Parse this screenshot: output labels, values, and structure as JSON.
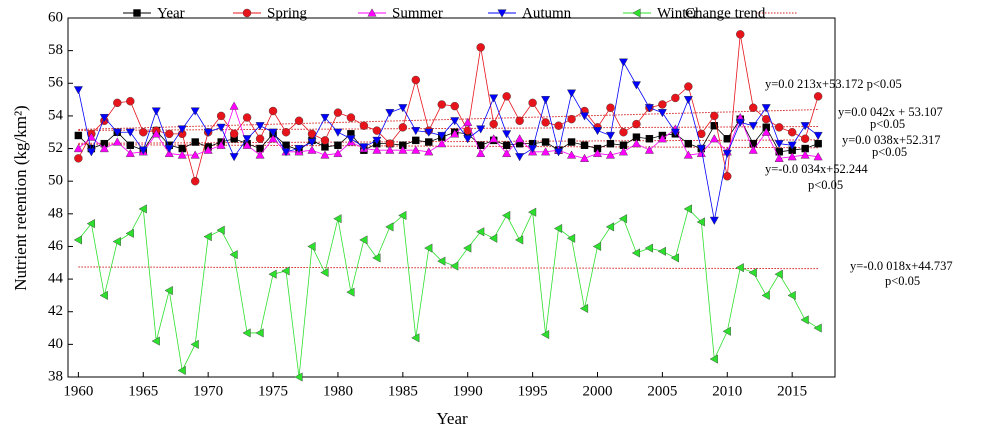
{
  "chart_data": {
    "type": "line",
    "x_label": "Year",
    "y_label": "Nutrient retention (kg/km²)",
    "x": [
      1960,
      1961,
      1962,
      1963,
      1964,
      1965,
      1966,
      1967,
      1968,
      1969,
      1970,
      1971,
      1972,
      1973,
      1974,
      1975,
      1976,
      1977,
      1978,
      1979,
      1980,
      1981,
      1982,
      1983,
      1984,
      1985,
      1986,
      1987,
      1988,
      1989,
      1990,
      1991,
      1992,
      1993,
      1994,
      1995,
      1996,
      1997,
      1998,
      1999,
      2000,
      2001,
      2002,
      2003,
      2004,
      2005,
      2006,
      2007,
      2008,
      2009,
      2010,
      2011,
      2012,
      2013,
      2014,
      2015,
      2016,
      2017
    ],
    "xlim": [
      1959.2,
      2018.3
    ],
    "xticks": [
      1960,
      1965,
      1970,
      1975,
      1980,
      1985,
      1990,
      1995,
      2000,
      2005,
      2010,
      2015
    ],
    "ylim": [
      38,
      60
    ],
    "yticks": [
      38,
      40,
      42,
      44,
      46,
      48,
      50,
      52,
      54,
      56,
      58,
      60
    ],
    "series": [
      {
        "name": "Year",
        "color": "#000000",
        "marker": "square",
        "values": [
          52.8,
          52.0,
          52.3,
          53.0,
          52.2,
          51.9,
          53.1,
          52.2,
          52.0,
          52.4,
          52.1,
          52.4,
          52.6,
          52.3,
          52.0,
          52.9,
          52.2,
          51.9,
          52.5,
          52.1,
          52.2,
          52.9,
          51.9,
          52.3,
          52.3,
          52.2,
          52.5,
          52.4,
          52.7,
          53.0,
          52.9,
          52.2,
          52.5,
          52.2,
          52.3,
          52.3,
          52.4,
          51.9,
          52.4,
          52.2,
          52.0,
          52.3,
          52.2,
          52.7,
          52.6,
          52.8,
          52.9,
          52.3,
          52.0,
          53.4,
          52.6,
          53.8,
          52.3,
          53.3,
          51.8,
          51.9,
          52.0,
          52.3
        ]
      },
      {
        "name": "Spring",
        "color": "#e8141c",
        "marker": "circle",
        "values": [
          51.4,
          52.9,
          53.7,
          54.8,
          54.9,
          53.0,
          53.1,
          52.9,
          52.9,
          50.0,
          53.0,
          54.0,
          52.9,
          53.9,
          52.6,
          54.3,
          53.0,
          53.7,
          52.9,
          52.5,
          54.2,
          53.9,
          53.4,
          53.1,
          52.3,
          53.3,
          56.2,
          53.1,
          54.7,
          54.6,
          53.1,
          58.2,
          53.5,
          55.2,
          53.7,
          54.8,
          53.6,
          53.4,
          53.8,
          54.3,
          53.3,
          54.5,
          53.0,
          53.5,
          54.5,
          54.7,
          55.1,
          55.8,
          52.9,
          54.0,
          50.3,
          59.0,
          54.5,
          53.8,
          53.3,
          53.0,
          52.6,
          55.2
        ]
      },
      {
        "name": "Summer",
        "color": "#ff00ff",
        "marker": "triangle-up",
        "values": [
          52.0,
          52.7,
          52.0,
          52.4,
          51.7,
          51.8,
          52.9,
          51.7,
          51.6,
          51.6,
          51.9,
          52.2,
          54.6,
          52.2,
          51.6,
          52.6,
          51.8,
          51.8,
          51.9,
          51.6,
          51.7,
          52.4,
          52.0,
          51.9,
          51.9,
          51.9,
          51.9,
          51.8,
          52.3,
          52.9,
          53.6,
          51.7,
          52.6,
          51.7,
          52.6,
          51.8,
          51.8,
          51.9,
          51.6,
          51.4,
          51.7,
          51.6,
          51.8,
          52.3,
          51.9,
          52.6,
          53.2,
          51.6,
          51.7,
          52.6,
          51.8,
          53.9,
          51.9,
          53.0,
          51.4,
          51.5,
          51.6,
          51.5
        ]
      },
      {
        "name": "Autumn",
        "color": "#0000ff",
        "marker": "triangle-down",
        "values": [
          55.6,
          51.8,
          53.9,
          53.0,
          53.0,
          51.9,
          54.3,
          52.0,
          53.2,
          54.3,
          53.0,
          53.3,
          51.5,
          52.6,
          53.4,
          53.0,
          51.8,
          52.0,
          52.4,
          53.9,
          53.0,
          52.6,
          52.1,
          52.5,
          54.2,
          54.5,
          53.1,
          53.0,
          52.8,
          53.7,
          52.6,
          53.2,
          55.1,
          52.9,
          51.5,
          52.0,
          55.0,
          51.8,
          55.4,
          54.0,
          53.1,
          52.8,
          57.3,
          55.9,
          54.5,
          54.2,
          53.0,
          55.0,
          52.0,
          47.6,
          51.7,
          53.6,
          53.4,
          54.5,
          52.3,
          52.2,
          53.4,
          52.8
        ]
      },
      {
        "name": "Winter",
        "color": "#2ee02e",
        "marker": "triangle-left",
        "values": [
          46.4,
          47.4,
          43.0,
          46.3,
          46.8,
          48.3,
          40.2,
          43.3,
          38.4,
          40.0,
          46.6,
          47.0,
          45.5,
          40.7,
          40.7,
          44.3,
          44.5,
          38.0,
          46.0,
          44.4,
          47.7,
          43.2,
          46.4,
          45.3,
          47.2,
          47.9,
          40.4,
          45.9,
          45.1,
          44.8,
          45.9,
          46.9,
          46.5,
          47.9,
          46.4,
          48.1,
          40.6,
          47.1,
          46.5,
          42.2,
          46.0,
          47.2,
          47.7,
          45.6,
          45.9,
          45.7,
          45.3,
          48.3,
          47.5,
          39.1,
          40.8,
          44.7,
          44.4,
          43.0,
          44.3,
          43.0,
          41.5,
          41.0
        ]
      }
    ],
    "trend_name": "Change trend",
    "trend_color": "#d42020",
    "trends": [
      {
        "x": [
          1960,
          2017
        ],
        "values": [
          53.17,
          54.39
        ],
        "labels": [
          "y=0.0 213x+53.172  p<0.05"
        ]
      },
      {
        "x": [
          1960,
          2017
        ],
        "values": [
          53.11,
          53.35
        ],
        "labels": [
          "y=0.0 042x + 53.107",
          "p<0.05"
        ]
      },
      {
        "x": [
          1960,
          2017
        ],
        "values": [
          52.32,
          52.53
        ],
        "labels": [
          "y=0.0 038x+52.317",
          "p<0.05"
        ]
      },
      {
        "x": [
          1960,
          2017
        ],
        "values": [
          52.24,
          52.05
        ],
        "labels": [
          "y=-0.0 034x+52.244",
          "p<0.05"
        ]
      },
      {
        "x": [
          1960,
          2017
        ],
        "values": [
          44.74,
          44.64
        ],
        "labels": [
          "y=-0.0 018x+44.737",
          "p<0.05"
        ]
      }
    ]
  }
}
